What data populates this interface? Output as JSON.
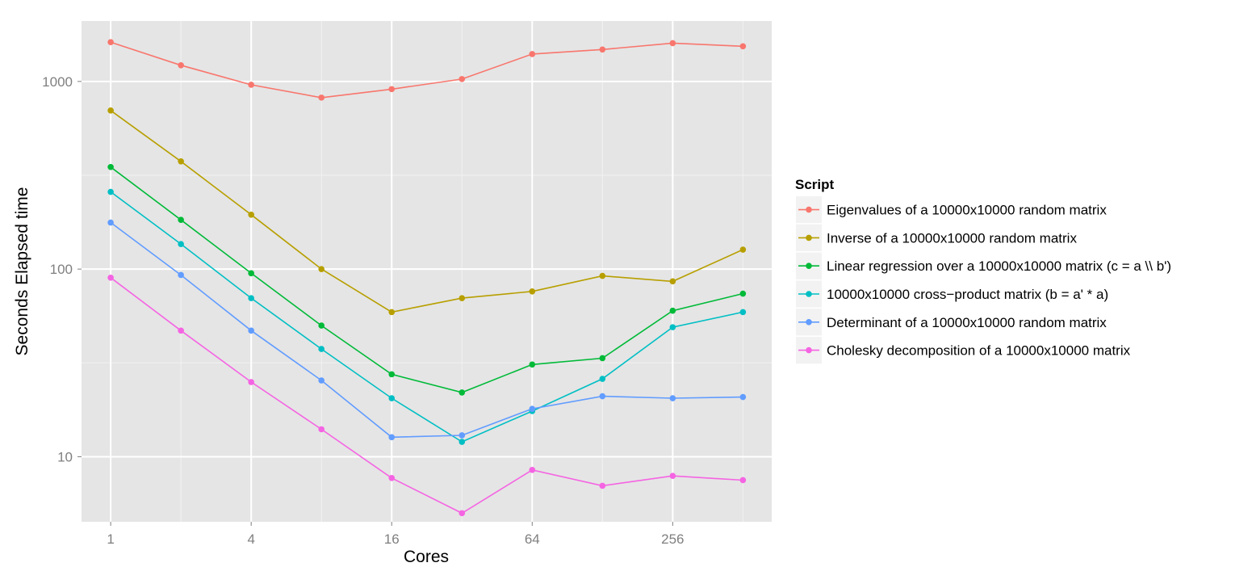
{
  "chart_data": {
    "type": "line",
    "title": "",
    "xlabel": "Cores",
    "ylabel": "Seconds Elapsed time",
    "x_scale": "log2",
    "y_scale": "log10",
    "x": [
      1,
      2,
      4,
      8,
      16,
      32,
      64,
      128,
      256,
      512
    ],
    "xlim": [
      0.75,
      680
    ],
    "ylim": [
      4.5,
      2100
    ],
    "x_ticks": [
      1,
      4,
      16,
      64,
      256
    ],
    "x_tick_labels": [
      "1",
      "4",
      "16",
      "64",
      "256"
    ],
    "y_ticks": [
      10,
      100,
      1000
    ],
    "y_tick_labels": [
      "10",
      "100",
      "1000"
    ],
    "grid": true,
    "background": "#E5E5E5",
    "legend": {
      "title": "Script",
      "position": "right"
    },
    "series": [
      {
        "name": "Eigenvalues of a 10000x10000 random matrix",
        "color": "#F8766D",
        "values": [
          1620,
          1220,
          960,
          820,
          910,
          1030,
          1400,
          1480,
          1600,
          1540
        ]
      },
      {
        "name": "Inverse of a 10000x10000 random matrix",
        "color": "#B79F00",
        "values": [
          700,
          375,
          195,
          100,
          59,
          70,
          76,
          92,
          86,
          127
        ]
      },
      {
        "name": "Linear regression over a 10000x10000 matrix (c = a \\\\ b')",
        "color": "#00BA38",
        "values": [
          350,
          183,
          95,
          50,
          27.5,
          22,
          31,
          33.5,
          60,
          74
        ]
      },
      {
        "name": "10000x10000 cross−product matrix (b = a' * a)",
        "color": "#00BFC4",
        "values": [
          258,
          136,
          70,
          37.5,
          20.5,
          12,
          17.5,
          26,
          49,
          59
        ]
      },
      {
        "name": "Determinant of a 10000x10000 random matrix",
        "color": "#619CFF",
        "values": [
          177,
          93,
          47,
          25.5,
          12.7,
          13,
          18,
          21,
          20.5,
          20.8
        ]
      },
      {
        "name": "Cholesky decomposition of a 10000x10000 matrix",
        "color": "#F564E3",
        "values": [
          90,
          47,
          25,
          14,
          7.7,
          5,
          8.5,
          7,
          7.9,
          7.5
        ]
      }
    ]
  }
}
